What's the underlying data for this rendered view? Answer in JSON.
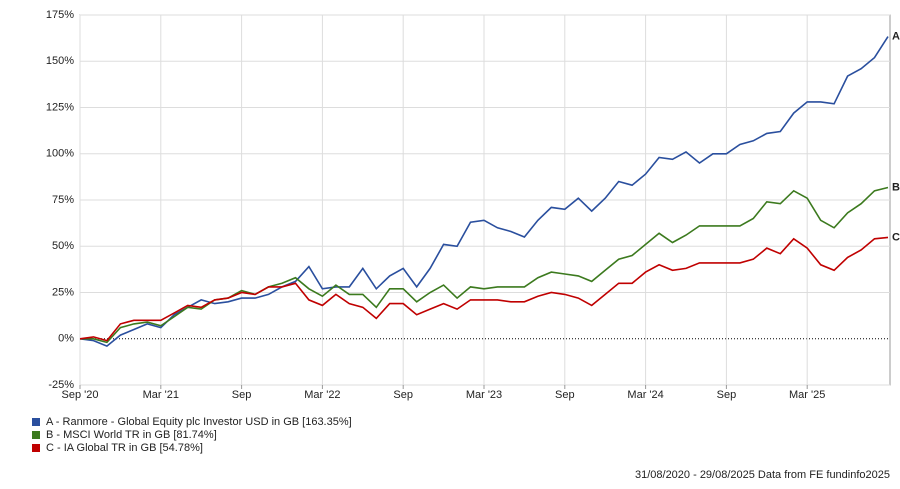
{
  "chart_data": {
    "type": "line",
    "categories": [
      "Sep '20",
      null,
      null,
      null,
      null,
      null,
      "Mar '21",
      null,
      null,
      null,
      null,
      null,
      "Sep",
      null,
      null,
      null,
      null,
      null,
      "Mar '22",
      null,
      null,
      null,
      null,
      null,
      "Sep",
      null,
      null,
      null,
      null,
      null,
      "Mar '23",
      null,
      null,
      null,
      null,
      null,
      "Sep",
      null,
      null,
      null,
      null,
      null,
      "Mar '24",
      null,
      null,
      null,
      null,
      null,
      "Sep",
      null,
      null,
      null,
      null,
      null,
      "Mar '25",
      null,
      null,
      null,
      null,
      null,
      null
    ],
    "series": [
      {
        "name": "A - Ranmore - Global Equity plc Investor USD in GB [163.35%]",
        "label": "A",
        "color": "#2a4f9e",
        "values": [
          0,
          -1,
          -4,
          2,
          5,
          8,
          6,
          13,
          17,
          21,
          19,
          20,
          22,
          22,
          24,
          28,
          31,
          39,
          27,
          28,
          28,
          38,
          27,
          34,
          38,
          28,
          38,
          51,
          50,
          63,
          64,
          60,
          58,
          55,
          64,
          71,
          70,
          76,
          69,
          76,
          85,
          83,
          89,
          98,
          97,
          101,
          95,
          100,
          100,
          105,
          107,
          111,
          112,
          122,
          128,
          128,
          127,
          142,
          146,
          152,
          163.35
        ]
      },
      {
        "name": "B - MSCI World TR in GB [81.74%]",
        "label": "B",
        "color": "#3c7a1e",
        "values": [
          0,
          0,
          -2,
          6,
          8,
          9,
          7,
          12,
          17,
          16,
          21,
          22,
          26,
          24,
          28,
          30,
          33,
          27,
          23,
          29,
          24,
          24,
          17,
          27,
          27,
          20,
          25,
          29,
          22,
          28,
          27,
          28,
          28,
          28,
          33,
          36,
          35,
          34,
          31,
          37,
          43,
          45,
          51,
          57,
          52,
          56,
          61,
          61,
          61,
          61,
          65,
          74,
          73,
          80,
          76,
          64,
          60,
          68,
          73,
          80,
          81.74
        ]
      },
      {
        "name": "C - IA Global TR in GB [54.78%]",
        "label": "C",
        "color": "#c00000",
        "values": [
          0,
          1,
          -1,
          8,
          10,
          10,
          10,
          14,
          18,
          17,
          21,
          22,
          25,
          24,
          28,
          28,
          30,
          21,
          18,
          24,
          19,
          17,
          11,
          19,
          19,
          13,
          16,
          19,
          16,
          21,
          21,
          21,
          20,
          20,
          23,
          25,
          24,
          22,
          18,
          24,
          30,
          30,
          36,
          40,
          37,
          38,
          41,
          41,
          41,
          41,
          43,
          49,
          46,
          54,
          49,
          40,
          37,
          44,
          48,
          54,
          54.78
        ]
      }
    ],
    "ylim": [
      -25,
      175
    ],
    "yticks": [
      {
        "value": -25,
        "label": "-25%"
      },
      {
        "value": 0,
        "label": "0%"
      },
      {
        "value": 25,
        "label": "25%"
      },
      {
        "value": 50,
        "label": "50%"
      },
      {
        "value": 75,
        "label": "75%"
      },
      {
        "value": 100,
        "label": "100%"
      },
      {
        "value": 125,
        "label": "125%"
      },
      {
        "value": 150,
        "label": "150%"
      },
      {
        "value": 175,
        "label": "175%"
      }
    ],
    "grid": true,
    "footer": "31/08/2020 - 29/08/2025 Data from FE fundinfo2025"
  }
}
